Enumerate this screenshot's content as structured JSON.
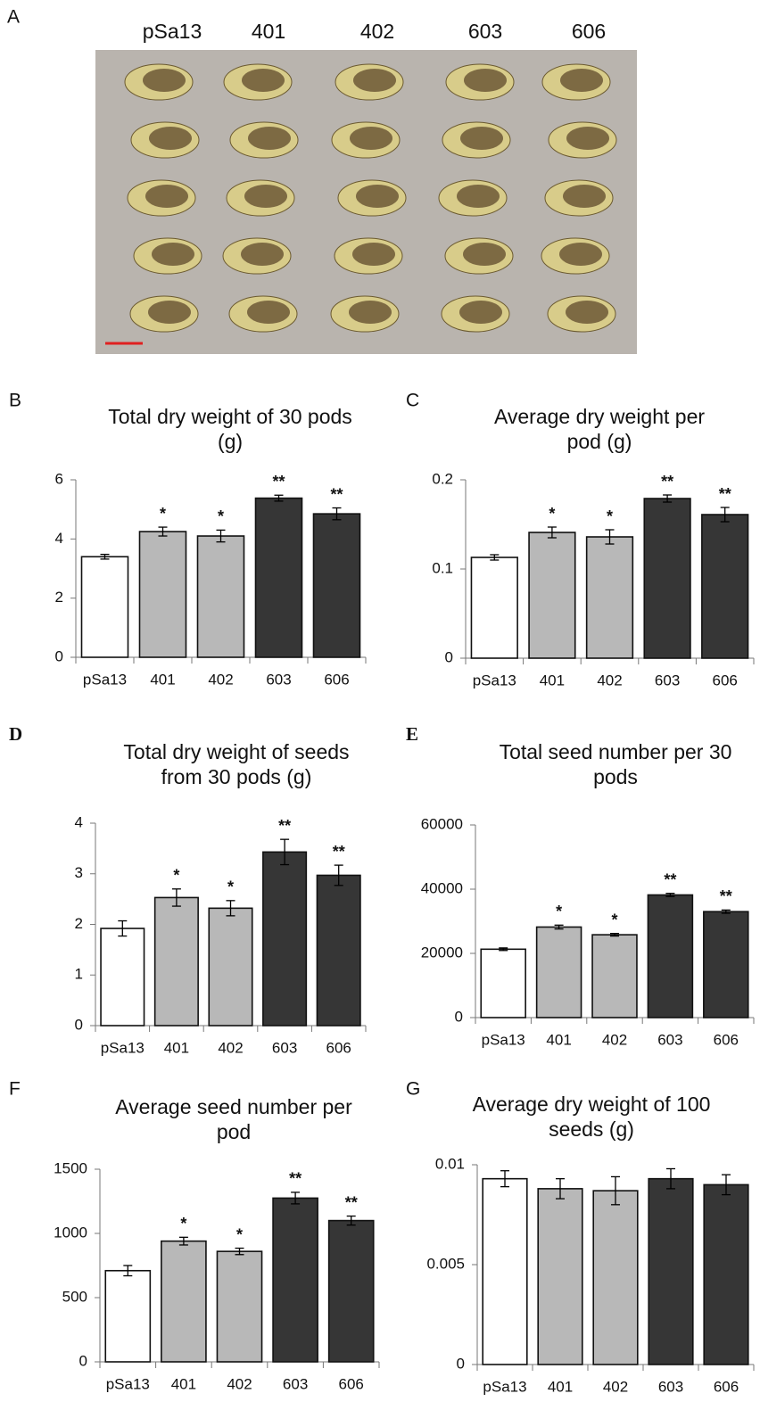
{
  "photo": {
    "label": "A",
    "columns": [
      "pSa13",
      "401",
      "402",
      "603",
      "606"
    ]
  },
  "chart_data": [
    {
      "type": "bar",
      "label": "B",
      "title": [
        "Total dry weight of 30 pods",
        "(g)"
      ],
      "categories": [
        "pSa13",
        "401",
        "402",
        "603",
        "606"
      ],
      "values": [
        3.4,
        4.25,
        4.1,
        5.38,
        4.85
      ],
      "errors": [
        0.08,
        0.15,
        0.2,
        0.1,
        0.2
      ],
      "annotations": [
        null,
        "*",
        "*",
        "**",
        "**"
      ],
      "colors": [
        "#ffffff",
        "#b8b8b8",
        "#b8b8b8",
        "#363636",
        "#363636"
      ],
      "ylim": [
        0,
        6
      ],
      "yticks": [
        0,
        2,
        4,
        6
      ]
    },
    {
      "type": "bar",
      "label": "C",
      "title": [
        "Average dry weight per",
        "pod (g)"
      ],
      "categories": [
        "pSa13",
        "401",
        "402",
        "603",
        "606"
      ],
      "values": [
        0.113,
        0.141,
        0.136,
        0.179,
        0.161
      ],
      "errors": [
        0.003,
        0.006,
        0.008,
        0.004,
        0.008
      ],
      "annotations": [
        null,
        "*",
        "*",
        "**",
        "**"
      ],
      "colors": [
        "#ffffff",
        "#b8b8b8",
        "#b8b8b8",
        "#363636",
        "#363636"
      ],
      "ylim": [
        0,
        0.2
      ],
      "yticks": [
        0,
        0.1,
        0.2
      ]
    },
    {
      "type": "bar",
      "label": "D",
      "title": [
        "Total dry weight  of seeds",
        "from 30 pods (g)"
      ],
      "categories": [
        "pSa13",
        "401",
        "402",
        "603",
        "606"
      ],
      "values": [
        1.92,
        2.53,
        2.32,
        3.43,
        2.97
      ],
      "errors": [
        0.15,
        0.17,
        0.15,
        0.25,
        0.2
      ],
      "annotations": [
        null,
        "*",
        "*",
        "**",
        "**"
      ],
      "colors": [
        "#ffffff",
        "#b8b8b8",
        "#b8b8b8",
        "#363636",
        "#363636"
      ],
      "ylim": [
        0,
        4
      ],
      "yticks": [
        0,
        1,
        2,
        3,
        4
      ]
    },
    {
      "type": "bar",
      "label": "E",
      "title": [
        "Total seed number per 30",
        "pods"
      ],
      "categories": [
        "pSa13",
        "401",
        "402",
        "603",
        "606"
      ],
      "values": [
        21300,
        28200,
        25800,
        38200,
        33000
      ],
      "errors": [
        400,
        600,
        400,
        500,
        500
      ],
      "annotations": [
        null,
        "*",
        "*",
        "**",
        "**"
      ],
      "colors": [
        "#ffffff",
        "#b8b8b8",
        "#b8b8b8",
        "#363636",
        "#363636"
      ],
      "ylim": [
        0,
        60000
      ],
      "yticks": [
        0,
        20000,
        40000,
        60000
      ]
    },
    {
      "type": "bar",
      "label": "F",
      "title": [
        "Average seed number per",
        "pod"
      ],
      "categories": [
        "pSa13",
        "401",
        "402",
        "603",
        "606"
      ],
      "values": [
        710,
        940,
        860,
        1275,
        1100
      ],
      "errors": [
        40,
        30,
        25,
        45,
        35
      ],
      "annotations": [
        null,
        "*",
        "*",
        "**",
        "**"
      ],
      "colors": [
        "#ffffff",
        "#b8b8b8",
        "#b8b8b8",
        "#363636",
        "#363636"
      ],
      "ylim": [
        0,
        1500
      ],
      "yticks": [
        0,
        500,
        1000,
        1500
      ]
    },
    {
      "type": "bar",
      "label": "G",
      "title": [
        "Average dry weight of 100",
        "seeds (g)"
      ],
      "categories": [
        "pSa13",
        "401",
        "402",
        "603",
        "606"
      ],
      "values": [
        0.0093,
        0.0088,
        0.0087,
        0.0093,
        0.009
      ],
      "errors": [
        0.0004,
        0.0005,
        0.0007,
        0.0005,
        0.0005
      ],
      "colors": [
        "#ffffff",
        "#b8b8b8",
        "#b8b8b8",
        "#363636",
        "#363636"
      ],
      "ylim": [
        0,
        0.01
      ],
      "yticks": [
        0,
        0.005,
        0.01
      ]
    }
  ]
}
